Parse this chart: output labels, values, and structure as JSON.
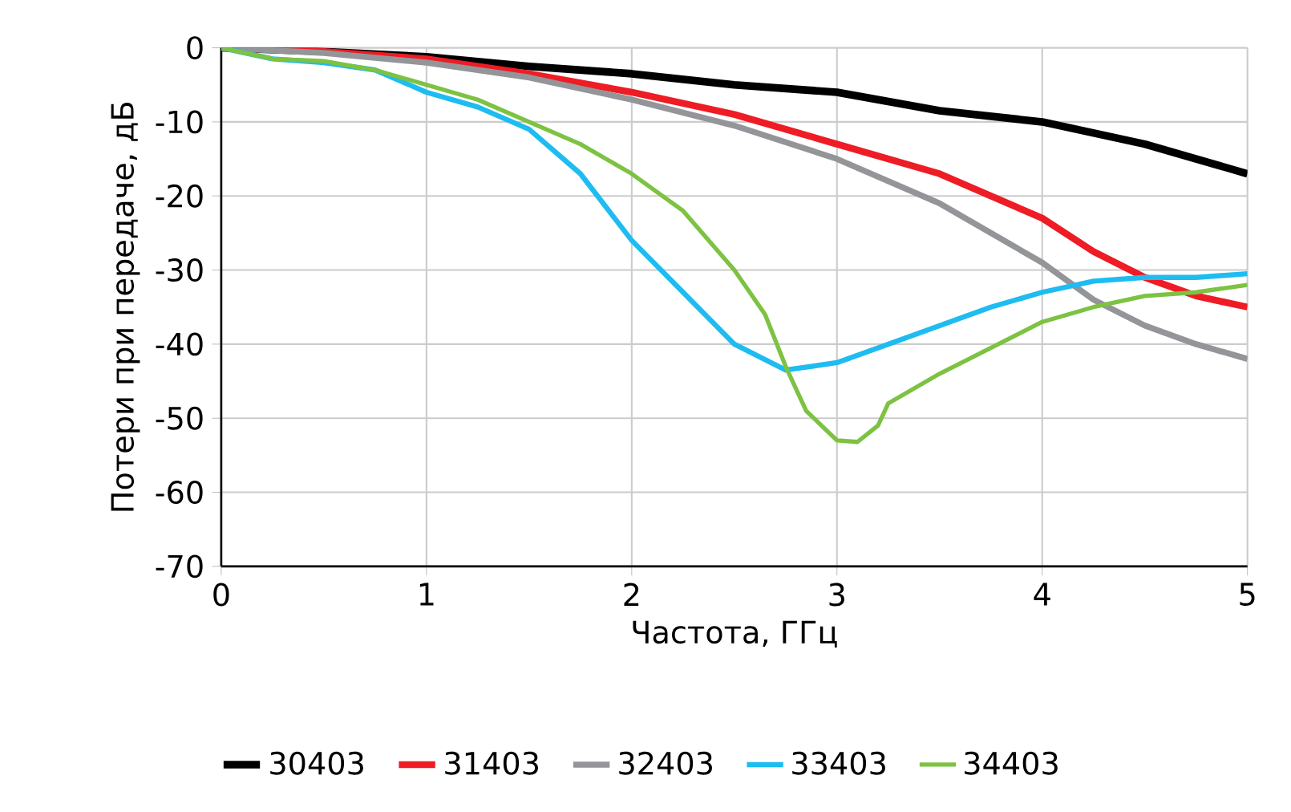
{
  "chart_data": {
    "type": "line",
    "xlabel": "Частота, ГГц",
    "ylabel": "Потери при передаче, дБ",
    "xlim": [
      0,
      5
    ],
    "xticks": [
      0,
      1,
      2,
      3,
      4,
      5
    ],
    "ylim": [
      -70,
      0
    ],
    "yticks": [
      -70,
      -60,
      -50,
      -40,
      -30,
      -20,
      -10,
      0
    ],
    "grid": true,
    "legend": "bottom",
    "marker": "none",
    "line_style": "solid",
    "series": [
      {
        "name": "30403",
        "color": "#000000",
        "x": [
          0,
          0.5,
          1,
          1.5,
          2,
          2.5,
          3,
          3.5,
          4,
          4.5,
          5
        ],
        "values": [
          0,
          -0.5,
          -1.2,
          -2.5,
          -3.5,
          -5,
          -6,
          -8.5,
          -10,
          -13,
          -17
        ]
      },
      {
        "name": "31403",
        "color": "#ee1c25",
        "x": [
          0,
          0.5,
          1,
          1.5,
          2,
          2.5,
          3,
          3.5,
          4,
          4.25,
          4.5,
          4.75,
          5
        ],
        "values": [
          0,
          -0.5,
          -1.5,
          -3.5,
          -6,
          -9,
          -13,
          -17,
          -23,
          -27.5,
          -31,
          -33.5,
          -35
        ]
      },
      {
        "name": "32403",
        "color": "#939598",
        "x": [
          0,
          0.5,
          1,
          1.5,
          2,
          2.5,
          3,
          3.5,
          4,
          4.25,
          4.5,
          4.75,
          5
        ],
        "values": [
          0,
          -0.7,
          -2,
          -4,
          -7,
          -10.5,
          -15,
          -21,
          -29,
          -34,
          -37.5,
          -40,
          -42
        ]
      },
      {
        "name": "33403",
        "color": "#1ebcf0",
        "x": [
          0,
          0.25,
          0.5,
          0.75,
          1,
          1.25,
          1.5,
          1.75,
          2,
          2.25,
          2.5,
          2.75,
          3,
          3.25,
          3.5,
          3.75,
          4,
          4.25,
          4.5,
          4.75,
          5
        ],
        "values": [
          0,
          -1.5,
          -2,
          -3,
          -6,
          -8,
          -11,
          -17,
          -26,
          -33,
          -40,
          -43.5,
          -42.5,
          -40,
          -37.5,
          -35,
          -33,
          -31.5,
          -31,
          -31,
          -30.5
        ]
      },
      {
        "name": "34403",
        "color": "#7dc242",
        "x": [
          0,
          0.25,
          0.5,
          0.75,
          1,
          1.25,
          1.5,
          1.75,
          2,
          2.25,
          2.5,
          2.65,
          2.75,
          2.85,
          3,
          3.1,
          3.2,
          3.25,
          3.5,
          3.75,
          4,
          4.25,
          4.5,
          4.75,
          5
        ],
        "values": [
          0,
          -1.5,
          -1.8,
          -3,
          -5,
          -7,
          -10,
          -13,
          -17,
          -22,
          -30,
          -36,
          -43,
          -49,
          -53,
          -53.2,
          -51,
          -48,
          -44,
          -40.5,
          -37,
          -35,
          -33.5,
          -33,
          -32
        ]
      }
    ]
  }
}
